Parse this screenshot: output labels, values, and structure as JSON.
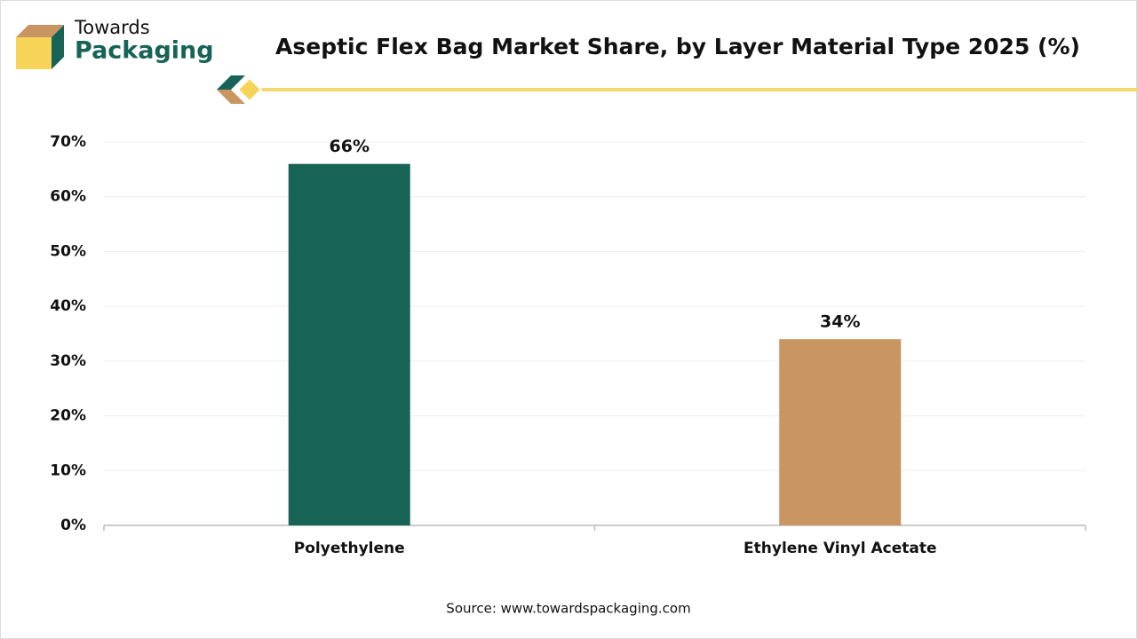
{
  "logo": {
    "line1": "Towards",
    "line2": "Packaging"
  },
  "chart_data": {
    "type": "bar",
    "title": "Aseptic Flex Bag Market Share, by Layer Material Type 2025 (%)",
    "categories": [
      "Polyethylene",
      "Ethylene Vinyl Acetate"
    ],
    "values": [
      66,
      34
    ],
    "value_labels": [
      "66%",
      "34%"
    ],
    "colors": [
      "#176356",
      "#c99563"
    ],
    "ylim": [
      0,
      70
    ],
    "yticks": [
      {
        "value": 0,
        "label": "0%"
      },
      {
        "value": 10,
        "label": "10%"
      },
      {
        "value": 20,
        "label": "20%"
      },
      {
        "value": 30,
        "label": "30%"
      },
      {
        "value": 40,
        "label": "40%"
      },
      {
        "value": 50,
        "label": "50%"
      },
      {
        "value": 60,
        "label": "60%"
      },
      {
        "value": 70,
        "label": "70%"
      }
    ],
    "grid": true,
    "source": "Source: www.towardspackaging.com"
  }
}
